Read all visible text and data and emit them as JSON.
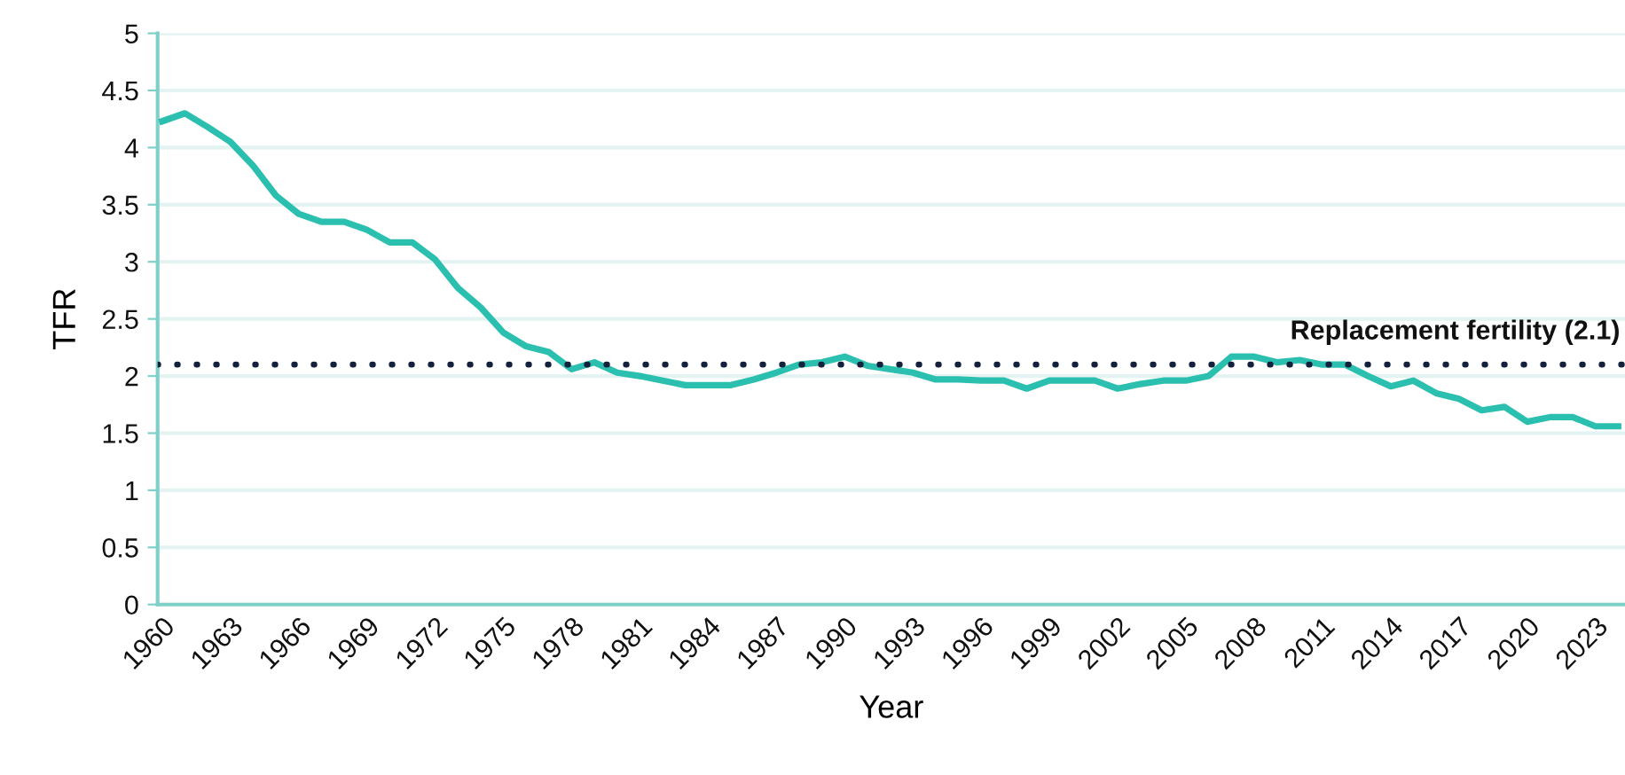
{
  "chart_data": {
    "type": "line",
    "xlabel": "Year",
    "ylabel": "TFR",
    "x": [
      1960,
      1961,
      1962,
      1963,
      1964,
      1965,
      1966,
      1967,
      1968,
      1969,
      1970,
      1971,
      1972,
      1973,
      1974,
      1975,
      1976,
      1977,
      1978,
      1979,
      1980,
      1981,
      1982,
      1983,
      1984,
      1985,
      1986,
      1987,
      1988,
      1989,
      1990,
      1991,
      1992,
      1993,
      1994,
      1995,
      1996,
      1997,
      1998,
      1999,
      2000,
      2001,
      2002,
      2003,
      2004,
      2005,
      2006,
      2007,
      2008,
      2009,
      2010,
      2011,
      2012,
      2013,
      2014,
      2015,
      2016,
      2017,
      2018,
      2019,
      2020,
      2021,
      2022,
      2023,
      2024
    ],
    "series": [
      {
        "color": "#2bbfb0",
        "values": [
          4.23,
          4.3,
          4.18,
          4.05,
          3.84,
          3.58,
          3.42,
          3.35,
          3.35,
          3.28,
          3.17,
          3.17,
          3.02,
          2.77,
          2.6,
          2.38,
          2.26,
          2.21,
          2.06,
          2.12,
          2.03,
          2.0,
          1.96,
          1.92,
          1.92,
          1.92,
          1.97,
          2.03,
          2.1,
          2.12,
          2.17,
          2.09,
          2.06,
          2.03,
          1.97,
          1.97,
          1.96,
          1.96,
          1.89,
          1.96,
          1.96,
          1.96,
          1.89,
          1.93,
          1.96,
          1.96,
          2.0,
          2.17,
          2.17,
          2.12,
          2.14,
          2.1,
          2.1,
          2.0,
          1.91,
          1.96,
          1.85,
          1.8,
          1.7,
          1.73,
          1.6,
          1.64,
          1.64,
          1.56,
          1.56
        ]
      }
    ],
    "xlim": [
      1959.8,
      2024.3
    ],
    "xticks": [
      1960,
      1963,
      1966,
      1969,
      1972,
      1975,
      1978,
      1981,
      1984,
      1987,
      1990,
      1993,
      1996,
      1999,
      2002,
      2005,
      2008,
      2011,
      2014,
      2017,
      2020,
      2023
    ],
    "ylim": [
      0,
      5
    ],
    "yticks": [
      0,
      0.5,
      1,
      1.5,
      2,
      2.5,
      3,
      3.5,
      4,
      4.5,
      5
    ],
    "grid": "y",
    "marker": "none",
    "line_style": "solid",
    "ref_lines": [
      {
        "axis": "y",
        "value": 2.1,
        "label": "Replacement fertility (2.1)",
        "color": "#14213d",
        "line_style": "dotted"
      }
    ]
  }
}
